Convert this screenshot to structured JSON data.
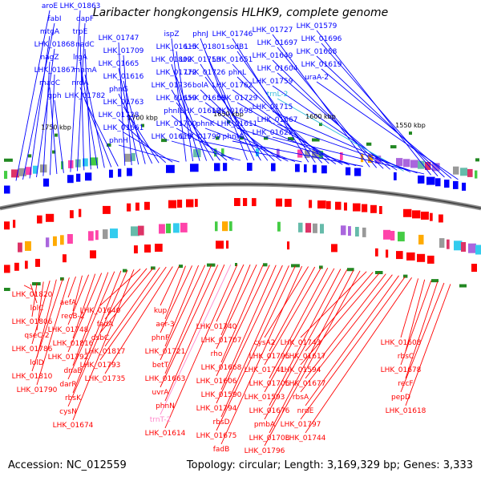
{
  "title": "Laribacter hongkongensis HLHK9, complete genome",
  "footer": {
    "accession": "Accession: NC_012559",
    "stats": "Topology: circular; Length: 3,169,329 bp; Genes: 3,333"
  },
  "colors": {
    "forward_strand": "#0000ff",
    "reverse_strand": "#ff0000",
    "trna": "#ff88cc",
    "trna_alt": "#33bbdd",
    "backbone": "#888888",
    "tick": "#228822"
  },
  "scale_labels": [
    "1750 kbp",
    "1700 kbp",
    "1650 kbp",
    "1600 kbp",
    "1550 kbp"
  ],
  "forward_labels": [
    "aroE",
    "fabI",
    "mtgA",
    "LHK_01868",
    "nagZ",
    "LHK_01867",
    "maoC",
    "gph",
    "LHK_01863",
    "dapF",
    "trpE",
    "nadC",
    "lrgA",
    "mnmA",
    "nrdA",
    "LHK_01782",
    "LHK_01747",
    "LHK_01709",
    "LHK_01665",
    "LHK_01616",
    "phnG",
    "LHK_01763",
    "LHK_01728",
    "LHK_01661",
    "phnH",
    "ispZ",
    "LHK_01615",
    "LHK_01802",
    "LHK_01772",
    "LHK_01736",
    "LHK_01659",
    "phnI",
    "LHK_01700",
    "LHK_01613",
    "phnJ",
    "LHK_01801",
    "LHK_01758",
    "LHK_01726",
    "bolA",
    "LHK_01653",
    "LHK_01612",
    "phnK",
    "LHK_01799",
    "LHK_01746",
    "sodB1",
    "LHK_01651",
    "phnL",
    "LHK_01762",
    "LHK_01729",
    "LHK_01698",
    "LHK_01611",
    "phnM",
    "LHK_01727",
    "LHK_01697",
    "LHK_01649",
    "LHK_01604",
    "LHK_01759",
    "trnL-2",
    "LHK_01715",
    "LHK_01667",
    "LHK_01629",
    "LHK_01579",
    "LHK_01696",
    "LHK_01658",
    "LHK_01619",
    "uraA-2"
  ],
  "reverse_labels": [
    "LHK_01820",
    "lolC",
    "LHK_01806",
    "qseC-2",
    "LHK_01786",
    "lolD",
    "LHK_01810",
    "LHK_01790",
    "aefA",
    "recB-2",
    "LHK_01748",
    "LHK_01816",
    "LHK_01792",
    "dnaB",
    "darR",
    "rbsK",
    "cysN",
    "LHK_01674",
    "LHK_01640",
    "fadA",
    "dsbC",
    "LHK_01817",
    "LHK_01793",
    "LHK_01735",
    "kup",
    "aer-3",
    "phnF",
    "LHK_01721",
    "betT",
    "LHK_01663",
    "uvrA",
    "phnN",
    "trnT-2",
    "LHK_01614",
    "LHK_01740",
    "LHK_01707",
    "rho",
    "LHK_01668",
    "LHK_01606",
    "LHK_01590",
    "LHK_01794",
    "rbsD",
    "LHK_01675",
    "fadB",
    "cysA2",
    "LHK_01795",
    "LHK_01741",
    "LHK_01706",
    "LHK_01593",
    "LHK_01676",
    "pmbA",
    "LHK_01708",
    "LHK_01796",
    "LHK_01743",
    "LHK_01617",
    "LHK_01594",
    "LHK_01677",
    "rbsA",
    "nrdE",
    "LHK_01797",
    "LHK_01744",
    "LHK_01608",
    "rbsC",
    "LHK_01678",
    "recF",
    "pepD",
    "LHK_01618"
  ]
}
